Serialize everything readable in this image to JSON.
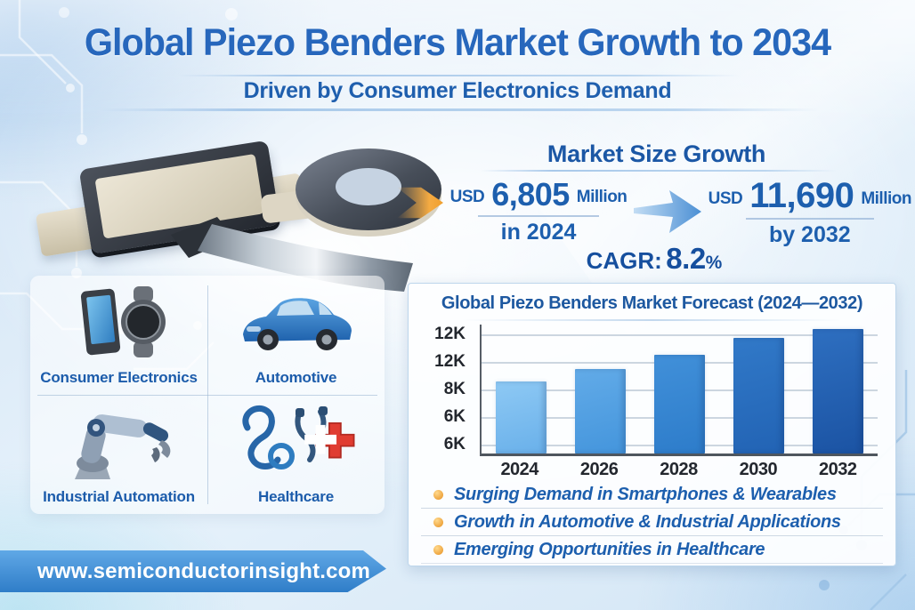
{
  "header": {
    "title": "Global Piezo Benders Market Growth to 2034",
    "subtitle": "Driven by Consumer Electronics Demand"
  },
  "market_growth": {
    "heading": "Market Size Growth",
    "from": {
      "currency": "USD",
      "value": "6,805",
      "unit": "Million",
      "period": "in 2024"
    },
    "to": {
      "currency": "USD",
      "value": "11,690",
      "unit": "Million",
      "period": "by 2032"
    },
    "cagr_label": "CAGR:",
    "cagr_value": "8.2",
    "cagr_suffix": "%"
  },
  "categories": [
    {
      "label": "Consumer Electronics",
      "icon": "smartphone-smartwatch-icon"
    },
    {
      "label": "Automotive",
      "icon": "car-icon"
    },
    {
      "label": "Industrial Automation",
      "icon": "robot-arm-icon"
    },
    {
      "label": "Healthcare",
      "icon": "stethoscope-cross-icon"
    }
  ],
  "chart_data": {
    "type": "bar",
    "title": "Global Piezo Benders Market Forecast (2024—2032)",
    "categories": [
      "2024",
      "2026",
      "2028",
      "2030",
      "2032"
    ],
    "values": [
      6805,
      8000,
      9300,
      10900,
      11690
    ],
    "unit": "USD Million",
    "xlabel": "",
    "ylabel": "",
    "ylim": [
      0,
      12400
    ],
    "y_tick_labels": [
      "12K",
      "12K",
      "8K",
      "6K",
      "6K"
    ],
    "grid": true,
    "legend": "none",
    "bars": [
      {
        "top": "#8ec9f4",
        "bottom": "#69b0ea"
      },
      {
        "top": "#62abe8",
        "bottom": "#4495dc"
      },
      {
        "top": "#4190d9",
        "bottom": "#2d7cca"
      },
      {
        "top": "#3179c8",
        "bottom": "#2263b4"
      },
      {
        "top": "#2e6fc0",
        "bottom": "#1b53a3"
      }
    ]
  },
  "highlights": [
    "Surging Demand in Smartphones & Wearables",
    "Growth in Automotive & Industrial Applications",
    "Emerging Opportunities in Healthcare"
  ],
  "footer": {
    "website": "www.semiconductorinsight.com"
  },
  "colors": {
    "accent_blue": "#1d5fae",
    "title_blue": "#2767bc",
    "ribbon_blue": "#3181cd",
    "bullet_orange": "#eda23b",
    "healthcare_red": "#e03c31"
  }
}
